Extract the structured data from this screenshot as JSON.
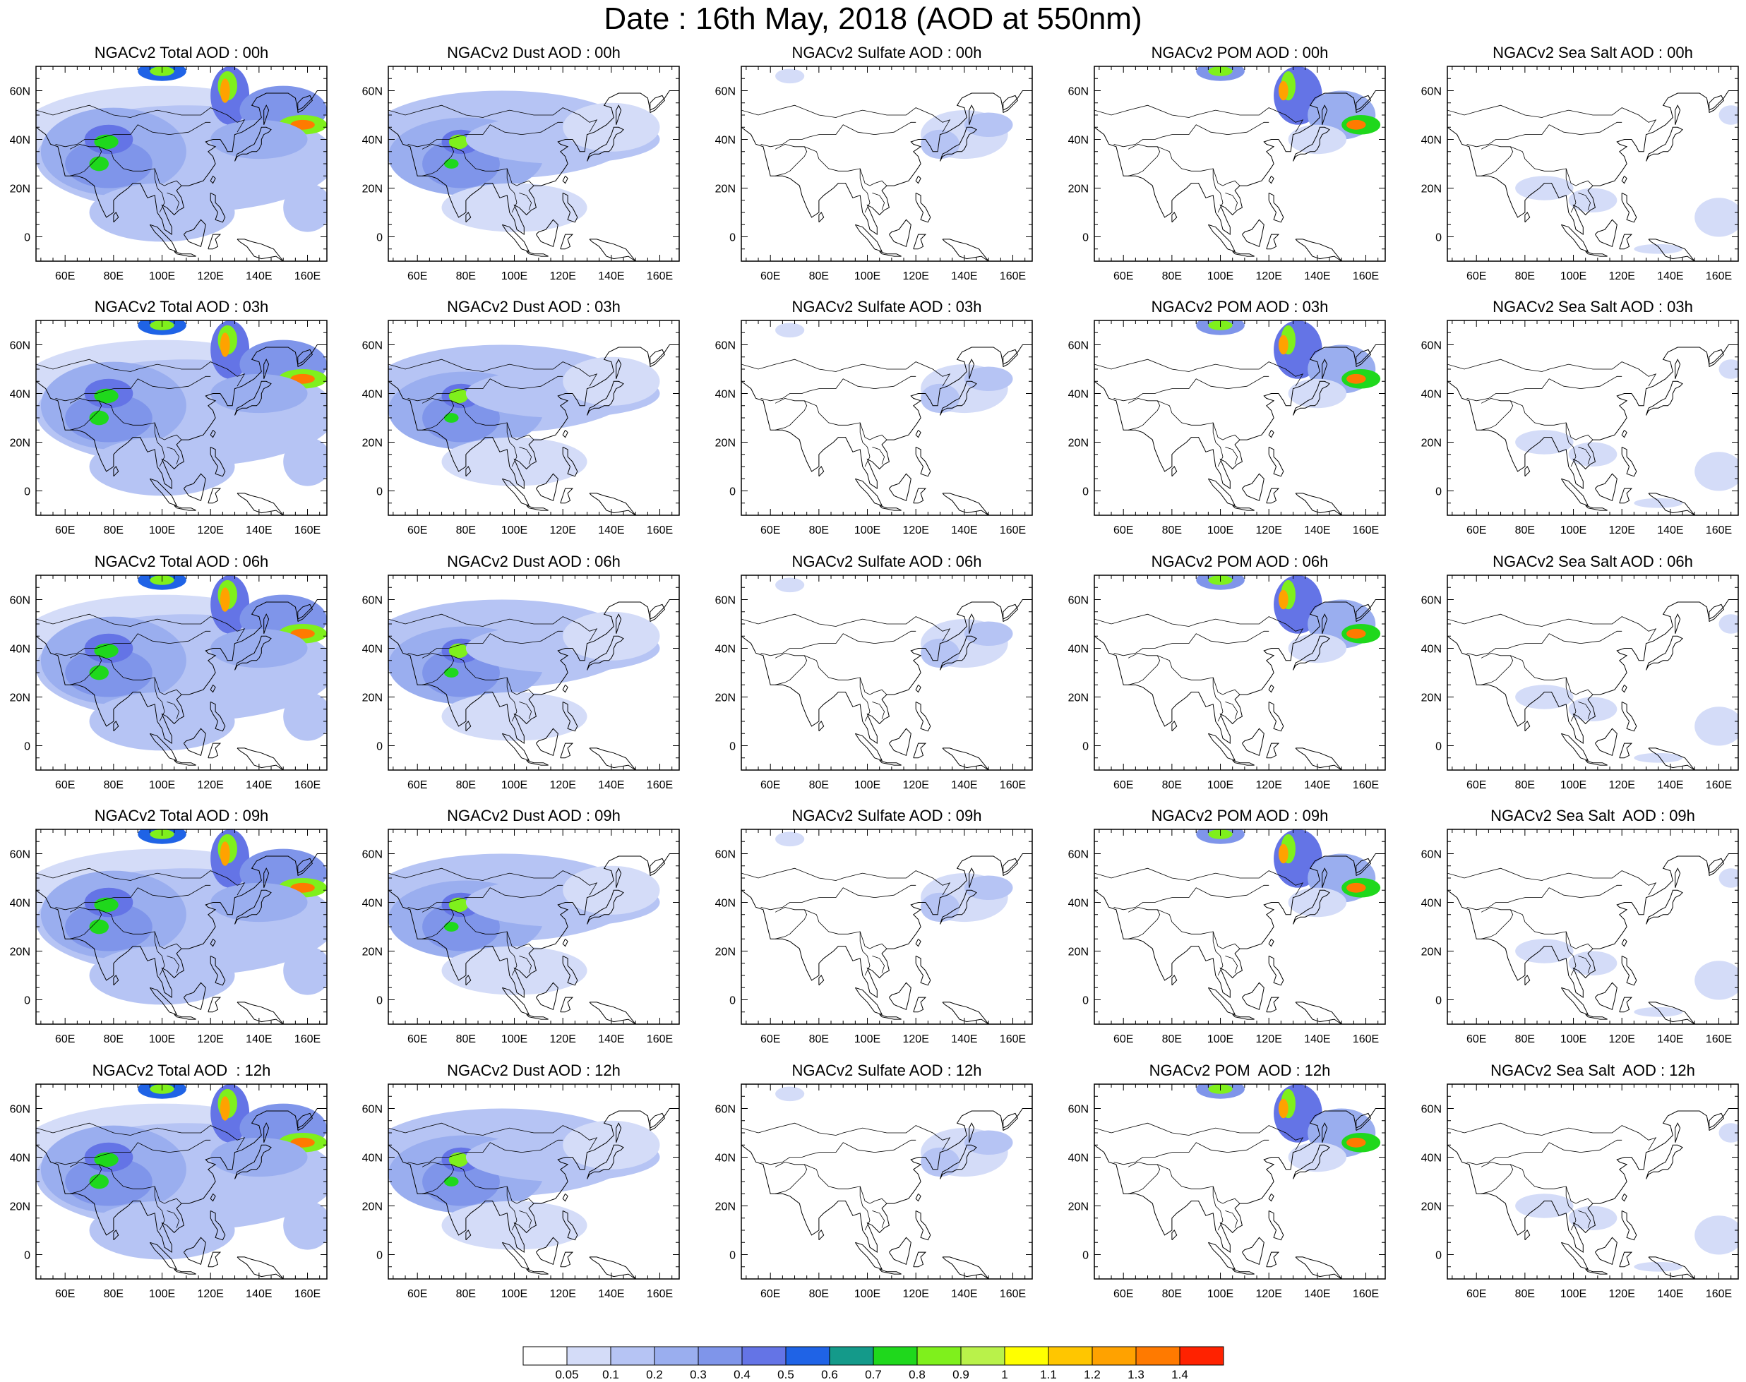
{
  "title": "Date : 16th May, 2018 (AOD at 550nm)",
  "axes": {
    "lat_ticks": [
      "60N",
      "40N",
      "20N",
      "0"
    ],
    "lon_ticks": [
      "60E",
      "80E",
      "100E",
      "120E",
      "140E",
      "160E"
    ]
  },
  "rows": [
    {
      "time": "00h",
      "titles": [
        "NGACv2 Total AOD : 00h",
        "NGACv2 Dust AOD : 00h",
        "NGACv2 Sulfate AOD : 00h",
        "NGACv2 POM AOD : 00h",
        "NGACv2 Sea Salt AOD : 00h"
      ]
    },
    {
      "time": "03h",
      "titles": [
        "NGACv2 Total AOD : 03h",
        "NGACv2 Dust AOD : 03h",
        "NGACv2 Sulfate AOD : 03h",
        "NGACv2 POM AOD : 03h",
        "NGACv2 Sea Salt AOD : 03h"
      ]
    },
    {
      "time": "06h",
      "titles": [
        "NGACv2 Total AOD : 06h",
        "NGACv2 Dust AOD : 06h",
        "NGACv2 Sulfate AOD : 06h",
        "NGACv2 POM AOD : 06h",
        "NGACv2 Sea Salt AOD : 06h"
      ]
    },
    {
      "time": "09h",
      "titles": [
        "NGACv2 Total AOD : 09h",
        "NGACv2 Dust AOD : 09h",
        "NGACv2 Sulfate AOD : 09h",
        "NGACv2 POM AOD : 09h",
        "NGACv2 Sea Salt  AOD : 09h"
      ]
    },
    {
      "time": "12h",
      "titles": [
        "NGACv2 Total AOD  : 12h",
        "NGACv2 Dust AOD : 12h",
        "NGACv2 Sulfate AOD : 12h",
        "NGACv2 POM  AOD : 12h",
        "NGACv2 Sea Salt  AOD : 12h"
      ]
    }
  ],
  "colorbar": {
    "labels": [
      "0.05",
      "0.1",
      "0.2",
      "0.3",
      "0.4",
      "0.5",
      "0.6",
      "0.7",
      "0.8",
      "0.9",
      "1",
      "1.1",
      "1.2",
      "1.3",
      "1.4"
    ],
    "colors": [
      "#ffffff",
      "#d4dcf8",
      "#b6c4f4",
      "#9aaeef",
      "#7f95ea",
      "#6474e6",
      "#1f63e6",
      "#149a8a",
      "#1fd81c",
      "#7ff01c",
      "#b9f24a",
      "#ffff00",
      "#ffc600",
      "#ffa200",
      "#ff7a00",
      "#ff2200"
    ]
  }
}
